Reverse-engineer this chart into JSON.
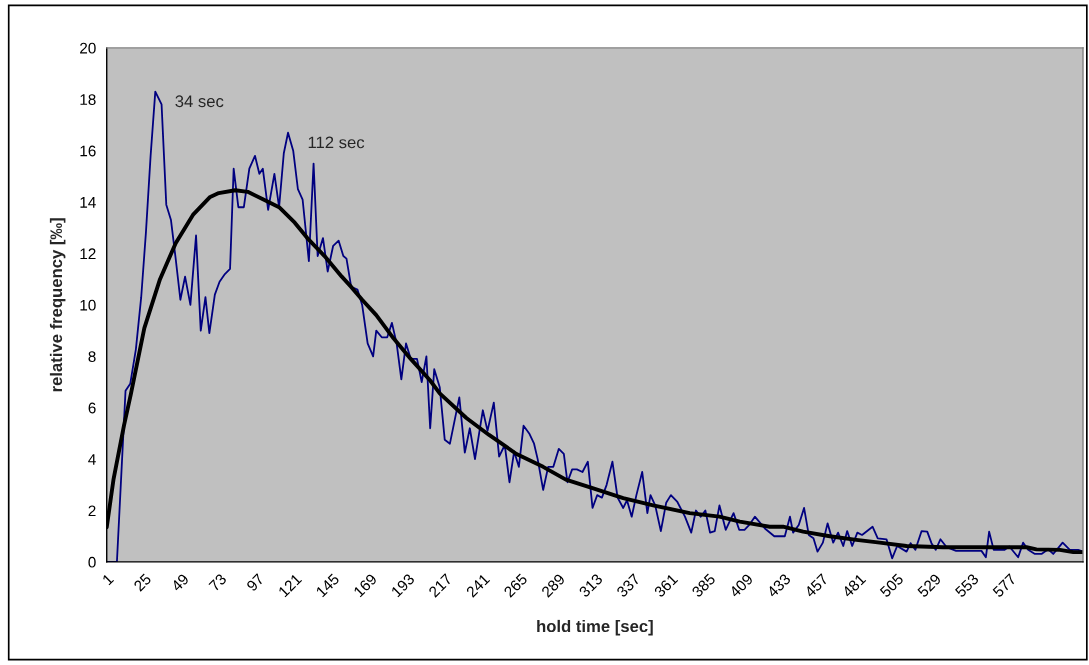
{
  "chart_data": {
    "type": "line",
    "xlabel": "hold time [sec]",
    "ylabel": "relative frequency [‰]",
    "xlim": [
      1,
      624
    ],
    "xticks": [
      1,
      25,
      49,
      73,
      97,
      121,
      145,
      169,
      193,
      217,
      241,
      265,
      289,
      313,
      337,
      361,
      385,
      409,
      433,
      457,
      481,
      505,
      529,
      553,
      577
    ],
    "ylim": [
      0,
      20
    ],
    "yticks": [
      0,
      2,
      4,
      6,
      8,
      10,
      12,
      14,
      16,
      18,
      20
    ],
    "grid": false,
    "legend": false,
    "series": [
      {
        "color": "#000080",
        "x": [
          1,
          7.5,
          13,
          16,
          19.6,
          23,
          26,
          29,
          32,
          36,
          39,
          42,
          45,
          48,
          51,
          54.4,
          58,
          61,
          64,
          66.5,
          70,
          73,
          76.4,
          79.7,
          82,
          85,
          88.5,
          92,
          95.6,
          98.4,
          100.6,
          104,
          108,
          111,
          114,
          116.7,
          120,
          123,
          126,
          130,
          133,
          135.6,
          139,
          142,
          145.5,
          149,
          152,
          154,
          157,
          161,
          164,
          167.5,
          171,
          173,
          176.5,
          180,
          183,
          186,
          189,
          192,
          195,
          199,
          202,
          205,
          207.4,
          210,
          213.5,
          216.7,
          220,
          226,
          229.5,
          232.7,
          236,
          241,
          244,
          248,
          251.4,
          255,
          258,
          261,
          264,
          267,
          270.6,
          273.7,
          276,
          279.5,
          282.7,
          286,
          289.5,
          292.7,
          295,
          298,
          301,
          304.6,
          308,
          311,
          314,
          317,
          320,
          323.7,
          327,
          330.6,
          333,
          336,
          339,
          342.7,
          346,
          348,
          351,
          354.6,
          358,
          361,
          365,
          370,
          374,
          377,
          380,
          383,
          386,
          389,
          392,
          396,
          401,
          404.6,
          408,
          411,
          414.6,
          421,
          427,
          433.7,
          437,
          439,
          442.6,
          446,
          449,
          452,
          454.6,
          458,
          461,
          464.6,
          467.7,
          471,
          473.5,
          476.7,
          480,
          483,
          489.7,
          493,
          498.6,
          502.2,
          505.4,
          511.4,
          514,
          517,
          521,
          524.6,
          527.3,
          530,
          533,
          537,
          543,
          551.8,
          559.2,
          562,
          564.1,
          567,
          574,
          577,
          582.6,
          585.8,
          589,
          593.3,
          597.5,
          601.8,
          605,
          611,
          615.6,
          620.9,
          624
        ],
        "values": [
          0,
          0,
          6.66,
          6.93,
          8.27,
          10.3,
          12.8,
          15.8,
          18.3,
          17.8,
          13.9,
          13.3,
          11.8,
          10.2,
          11.1,
          10.0,
          12.7,
          9.0,
          10.3,
          8.9,
          10.4,
          10.9,
          11.2,
          11.4,
          15.3,
          13.8,
          13.8,
          15.3,
          15.8,
          15.1,
          15.3,
          13.7,
          15.1,
          13.8,
          15.9,
          16.7,
          16.0,
          14.5,
          14.1,
          11.7,
          15.5,
          11.9,
          12.6,
          11.3,
          12.3,
          12.5,
          11.9,
          11.8,
          10.7,
          10.6,
          10.0,
          8.5,
          8.0,
          9.0,
          8.74,
          8.74,
          9.3,
          8.5,
          7.1,
          8.5,
          7.9,
          7.9,
          7.0,
          8.0,
          5.2,
          7.5,
          6.8,
          4.75,
          4.6,
          6.4,
          4.25,
          5.2,
          4.0,
          5.9,
          5.1,
          6.2,
          4.1,
          4.55,
          3.1,
          4.3,
          3.7,
          5.3,
          5.0,
          4.6,
          4.0,
          2.8,
          3.7,
          3.7,
          4.4,
          4.2,
          3.1,
          3.6,
          3.6,
          3.5,
          3.9,
          2.1,
          2.6,
          2.5,
          3.0,
          3.9,
          2.5,
          2.1,
          2.4,
          1.76,
          2.6,
          3.5,
          1.9,
          2.6,
          2.2,
          1.2,
          2.3,
          2.6,
          2.35,
          1.76,
          1.14,
          2.0,
          1.76,
          2.0,
          1.14,
          1.2,
          2.2,
          1.25,
          1.9,
          1.25,
          1.25,
          1.44,
          1.76,
          1.3,
          1.0,
          1.0,
          1.76,
          1.14,
          1.44,
          2.1,
          1.05,
          0.92,
          0.4,
          0.75,
          1.5,
          0.75,
          1.14,
          0.62,
          1.2,
          0.62,
          1.14,
          1.05,
          1.37,
          0.92,
          0.88,
          0.14,
          0.62,
          0.4,
          0.73,
          0.47,
          1.2,
          1.18,
          0.73,
          0.47,
          0.88,
          0.57,
          0.43,
          0.43,
          0.43,
          0.18,
          1.18,
          0.47,
          0.47,
          0.6,
          0.18,
          0.75,
          0.47,
          0.31,
          0.31,
          0.49,
          0.31,
          0.75,
          0.47,
          0.47,
          0.4
        ]
      },
      {
        "color": "#000000",
        "x": [
          1,
          5.3,
          12,
          16.3,
          25,
          35,
          45,
          56,
          67,
          72.5,
          83,
          91,
          101,
          111,
          121,
          129,
          140,
          151,
          157,
          164,
          173,
          184,
          195,
          207.4,
          213.5,
          230.5,
          245,
          262.5,
          279.5,
          294,
          311,
          330.6,
          349.7,
          373,
          392,
          405,
          424,
          432.6,
          445.4,
          462.4,
          479.4,
          494.3,
          511.4,
          534.8,
          558.2,
          588,
          594.3,
          609.2,
          617.8,
          624
        ],
        "values": [
          1.35,
          3.2,
          5.3,
          6.5,
          9.1,
          11.0,
          12.4,
          13.5,
          14.2,
          14.35,
          14.46,
          14.4,
          14.1,
          13.8,
          13.2,
          12.6,
          11.9,
          11.1,
          10.7,
          10.2,
          9.6,
          8.7,
          7.9,
          7.06,
          6.56,
          5.6,
          4.94,
          4.2,
          3.7,
          3.2,
          2.87,
          2.48,
          2.2,
          1.9,
          1.76,
          1.57,
          1.37,
          1.37,
          1.18,
          1.0,
          0.86,
          0.75,
          0.62,
          0.57,
          0.57,
          0.57,
          0.49,
          0.47,
          0.38,
          0.38
        ]
      }
    ],
    "annotations": [
      {
        "text": "34 sec",
        "x": 32,
        "y": 18.3
      },
      {
        "text": "112 sec",
        "x": 116.7,
        "y": 16.7
      }
    ]
  }
}
